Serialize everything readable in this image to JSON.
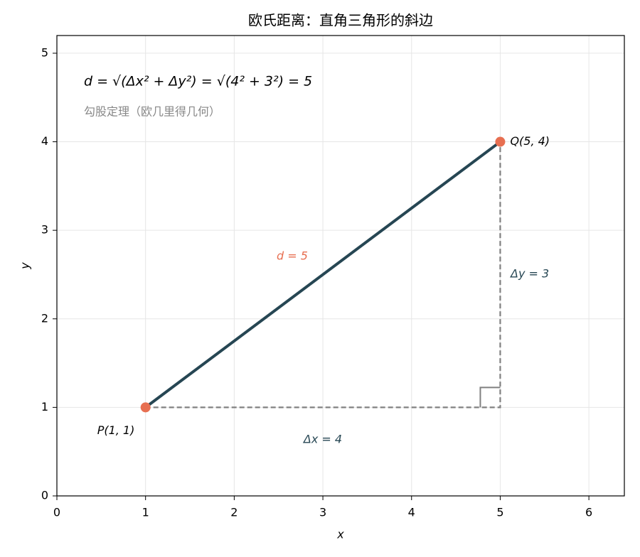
{
  "chart_data": {
    "type": "line",
    "title": "欧氏距离：直角三角形的斜边",
    "xlabel": "x",
    "ylabel": "y",
    "xlim": [
      0,
      6.4
    ],
    "ylim": [
      0,
      5.2
    ],
    "xticks": [
      0,
      1,
      2,
      3,
      4,
      5,
      6
    ],
    "yticks": [
      0,
      1,
      2,
      3,
      4,
      5
    ],
    "grid": true,
    "series": [
      {
        "x": [
          1,
          5
        ],
        "values": [
          1,
          4
        ],
        "color": "#264653"
      },
      {
        "x": [
          1,
          5,
          5
        ],
        "values": [
          1,
          1,
          4
        ],
        "color": "#808080",
        "dashed": true
      }
    ],
    "points": {
      "x": [
        1,
        5
      ],
      "values": [
        1,
        4
      ],
      "labels": [
        "P(1, 1)",
        "Q(5, 4)"
      ],
      "color": "#e76f51"
    },
    "formula": "d = √(Δx² + Δy²) = √(4² + 3²) = 5",
    "caption": "勾股定理（欧几里得几何）",
    "d_label": "d = 5",
    "dx_label": "Δx = 4",
    "dy_label": "Δy = 3"
  }
}
